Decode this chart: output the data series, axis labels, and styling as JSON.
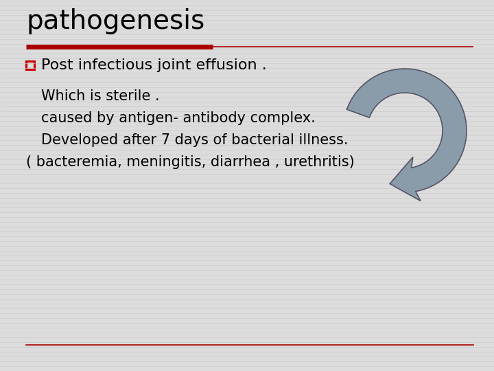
{
  "title": "pathogenesis",
  "title_fontsize": 28,
  "title_color": "#000000",
  "red_line_color": "#aa0000",
  "bg_color": "#dcdcdc",
  "bullet_color": "#cc0000",
  "bullet_text": "Post infectious joint effusion .",
  "bullet_fontsize": 16,
  "body_lines": [
    "Which is sterile .",
    "caused by antigen- antibody complex.",
    "Developed after 7 days of bacterial illness.",
    "( bacteremia, meningitis, diarrhea , urethritis)"
  ],
  "body_fontsize": 15,
  "body_color": "#000000",
  "arrow_color": "#8a9baa",
  "arrow_edge_color": "#555566",
  "bottom_line_color": "#aa0000",
  "stripe_color": "#c8c8c8"
}
